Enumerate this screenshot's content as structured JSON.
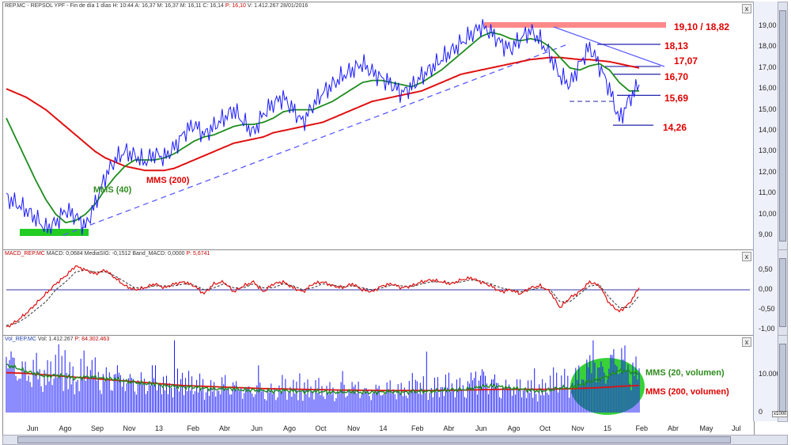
{
  "price_header": {
    "symbol": "REP.MC",
    "name": "REPSOL YPF",
    "period": "Fin de día 1 días",
    "h": "H: 10:44",
    "a": "A: 16,37",
    "m": "M: 16,37",
    "m2": "M: 16,11",
    "c": "C: 16,14",
    "p": "P: 16,10",
    "v": "V: 1.412.267",
    "date": "28/01/2016"
  },
  "macd_header": {
    "name": "MACD_REP.MC",
    "macd": "MACD: 0,0684",
    "signal": "MediaSIG: -0,1512",
    "band": "Band_MACD: 0,0000",
    "p": "P: 5,6741"
  },
  "vol_header": {
    "name": "Vol_REP.MC",
    "vol": "Vol: 1.412.267",
    "p": "P: 84.302.463"
  },
  "close_symbol": "x",
  "units_tag": "x1000",
  "annotations": {
    "resistance_top": "19,10 / 18,82",
    "level_1813": "18,13",
    "level_1707": "17,07",
    "level_1670": "16,70",
    "level_1569": "15,69",
    "level_1426": "14,26",
    "mms40": "MMS (40)",
    "mms200": "MMS (200)",
    "vol_mms20": "MMS (20, volumen)",
    "vol_mms200": "MMS (200, volumen)"
  },
  "colors": {
    "price": "#1a1aff",
    "ma40": "#1e8c1e",
    "ma200": "#e01010",
    "trend": "#5a5aff",
    "highlight_green": "#22cc22",
    "highlight_red": "#ff6b6b"
  },
  "chart_data": [
    {
      "type": "line",
      "pane": "price",
      "y_ticks": [
        "19,00",
        "18,00",
        "17,00",
        "16,00",
        "15,00",
        "14,00",
        "13,00",
        "12,00",
        "11,00",
        "10,00",
        "9,00"
      ],
      "ylim": [
        8.6,
        19.4
      ],
      "x_tick_labels": [
        "Jun",
        "Ago",
        "Sep",
        "Nov",
        "13",
        "Feb",
        "Abr",
        "Jun",
        "Ago",
        "Oct",
        "Nov",
        "14",
        "Feb",
        "Abr",
        "Jun",
        "Ago",
        "Oct",
        "Nov",
        "15",
        "Feb",
        "Abr",
        "May",
        "Jul"
      ],
      "series": [
        {
          "name": "REP.MC",
          "values": [
            10.8,
            10.5,
            10.2,
            9.8,
            9.3,
            9.6,
            10.2,
            9.9,
            9.4,
            10.5,
            11.8,
            12.6,
            13.0,
            12.8,
            12.5,
            12.9,
            12.7,
            13.2,
            13.9,
            14.3,
            13.8,
            14.2,
            14.6,
            15.0,
            14.4,
            13.9,
            14.8,
            15.3,
            15.6,
            15.0,
            14.4,
            15.2,
            15.8,
            16.2,
            16.6,
            16.9,
            17.2,
            16.8,
            16.5,
            16.2,
            15.8,
            16.1,
            16.6,
            17.0,
            17.4,
            17.8,
            18.2,
            18.6,
            19.0,
            18.7,
            18.2,
            17.9,
            18.4,
            18.8,
            18.3,
            17.6,
            16.6,
            16.2,
            17.2,
            18.0,
            17.1,
            16.0,
            14.5,
            15.5,
            16.2
          ]
        },
        {
          "name": "MMS (40)",
          "values": [
            14.6,
            13.6,
            12.6,
            11.6,
            10.7,
            10.0,
            9.6,
            9.7,
            10.0,
            10.5,
            11.2,
            11.8,
            12.3,
            12.6,
            12.6,
            12.6,
            12.7,
            12.9,
            13.2,
            13.5,
            13.7,
            13.8,
            14.0,
            14.2,
            14.3,
            14.3,
            14.4,
            14.6,
            14.9,
            15.0,
            15.0,
            15.0,
            15.2,
            15.4,
            15.7,
            16.0,
            16.3,
            16.4,
            16.4,
            16.3,
            16.2,
            16.1,
            16.3,
            16.6,
            16.9,
            17.3,
            17.7,
            18.1,
            18.5,
            18.7,
            18.6,
            18.4,
            18.3,
            18.4,
            18.3,
            18.0,
            17.5,
            17.0,
            16.9,
            17.1,
            17.2,
            16.9,
            16.3,
            15.9,
            15.9
          ]
        },
        {
          "name": "MMS (200)",
          "values": [
            16.0,
            15.8,
            15.6,
            15.3,
            15.0,
            14.6,
            14.2,
            13.8,
            13.4,
            13.0,
            12.7,
            12.5,
            12.3,
            12.2,
            12.1,
            12.1,
            12.1,
            12.2,
            12.4,
            12.6,
            12.8,
            13.0,
            13.2,
            13.4,
            13.5,
            13.6,
            13.7,
            13.9,
            14.0,
            14.1,
            14.2,
            14.3,
            14.4,
            14.6,
            14.8,
            15.0,
            15.2,
            15.4,
            15.5,
            15.6,
            15.7,
            15.8,
            15.9,
            16.1,
            16.3,
            16.5,
            16.7,
            16.8,
            16.9,
            17.0,
            17.1,
            17.2,
            17.3,
            17.4,
            17.45,
            17.5,
            17.5,
            17.45,
            17.4,
            17.4,
            17.35,
            17.3,
            17.2,
            17.1,
            17.0
          ]
        }
      ]
    },
    {
      "type": "line",
      "pane": "macd",
      "y_ticks": [
        "0,50",
        "0,00",
        "-0,50",
        "-1,00"
      ],
      "ylim": [
        -1.2,
        0.75
      ],
      "series": [
        {
          "name": "MACD",
          "values": [
            -0.95,
            -0.8,
            -0.6,
            -0.35,
            -0.1,
            0.15,
            0.35,
            0.6,
            0.5,
            0.4,
            0.5,
            0.3,
            0.1,
            0.0,
            0.05,
            0.15,
            0.05,
            0.15,
            0.2,
            0.1,
            -0.1,
            0.15,
            0.2,
            -0.05,
            0.1,
            0.2,
            -0.05,
            0.15,
            0.2,
            0.05,
            -0.05,
            0.15,
            0.2,
            0.1,
            0.05,
            0.15,
            0.0,
            -0.05,
            0.1,
            0.15,
            0.05,
            0.1,
            0.2,
            0.25,
            0.2,
            0.15,
            0.25,
            0.3,
            0.2,
            0.1,
            -0.05,
            0.0,
            -0.1,
            0.05,
            0.1,
            -0.05,
            -0.45,
            -0.2,
            -0.05,
            0.2,
            0.1,
            -0.35,
            -0.55,
            -0.35,
            0.05
          ]
        },
        {
          "name": "MediaSIG",
          "values": [
            -0.9,
            -0.85,
            -0.7,
            -0.5,
            -0.3,
            0.0,
            0.2,
            0.45,
            0.5,
            0.45,
            0.45,
            0.35,
            0.2,
            0.05,
            0.05,
            0.1,
            0.1,
            0.1,
            0.15,
            0.12,
            0.0,
            0.05,
            0.15,
            0.05,
            0.05,
            0.15,
            0.05,
            0.05,
            0.15,
            0.1,
            0.0,
            0.05,
            0.15,
            0.12,
            0.08,
            0.1,
            0.05,
            0.0,
            0.05,
            0.12,
            0.1,
            0.08,
            0.15,
            0.2,
            0.2,
            0.18,
            0.2,
            0.25,
            0.22,
            0.15,
            0.05,
            0.0,
            -0.05,
            0.0,
            0.05,
            0.0,
            -0.3,
            -0.3,
            -0.1,
            0.1,
            0.12,
            -0.2,
            -0.45,
            -0.45,
            -0.15
          ]
        }
      ]
    },
    {
      "type": "bar",
      "pane": "volume",
      "y_ticks": [
        "10.000",
        "0"
      ],
      "ylim": [
        0,
        20000
      ],
      "series": [
        {
          "name": "Vol",
          "values": [
            14000,
            11000,
            9500,
            10500,
            8000,
            12000,
            9000,
            7500,
            11000,
            9500,
            8000,
            10000,
            7000,
            8500,
            7000,
            9000,
            6000,
            7500,
            6500,
            7000,
            6000,
            5500,
            7000,
            6500,
            5000,
            6000,
            5500,
            5000,
            6500,
            5500,
            5000,
            6000,
            5500,
            5000,
            5500,
            6000,
            5000,
            5500,
            5500,
            6000,
            5000,
            6500,
            6000,
            5500,
            6500,
            7000,
            6000,
            7500,
            9000,
            8000,
            6500,
            5500,
            6000,
            5500,
            5000,
            7000,
            8000,
            6500,
            9000,
            11000,
            10000,
            12000,
            14000,
            11000,
            9000
          ]
        },
        {
          "name": "MMS (20, volumen)",
          "values": [
            12500,
            11800,
            10800,
            10200,
            9500,
            9800,
            9600,
            9000,
            9400,
            9300,
            8900,
            8800,
            8200,
            8000,
            7600,
            7600,
            7000,
            6900,
            6700,
            6700,
            6400,
            6200,
            6300,
            6200,
            5900,
            5900,
            5800,
            5600,
            5800,
            5700,
            5500,
            5600,
            5500,
            5300,
            5400,
            5500,
            5300,
            5300,
            5400,
            5500,
            5300,
            5500,
            5600,
            5600,
            5800,
            6000,
            6000,
            6300,
            6800,
            7000,
            6800,
            6400,
            6200,
            5900,
            5600,
            6000,
            6500,
            6500,
            7200,
            8200,
            8800,
            9800,
            11000,
            10800,
            10200
          ]
        },
        {
          "name": "MMS (200, volumen)",
          "values": [
            10500,
            10400,
            10300,
            10100,
            9900,
            9700,
            9500,
            9300,
            9100,
            8900,
            8700,
            8500,
            8300,
            8100,
            7900,
            7700,
            7500,
            7300,
            7100,
            7000,
            6900,
            6800,
            6700,
            6600,
            6500,
            6400,
            6300,
            6250,
            6200,
            6150,
            6100,
            6050,
            6000,
            5950,
            5900,
            5900,
            5850,
            5850,
            5800,
            5800,
            5800,
            5800,
            5800,
            5800,
            5850,
            5850,
            5900,
            5950,
            6000,
            6050,
            6100,
            6100,
            6100,
            6100,
            6100,
            6150,
            6200,
            6250,
            6350,
            6450,
            6550,
            6700,
            6900,
            7000,
            7100
          ]
        }
      ]
    }
  ]
}
